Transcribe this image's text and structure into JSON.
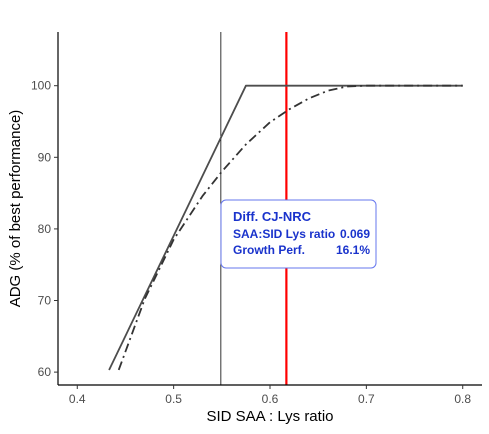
{
  "chart_data": {
    "type": "line",
    "xlabel": "SID SAA : Lys ratio",
    "ylabel": "ADG (% of best performance)",
    "xlim": [
      0.38,
      0.82
    ],
    "ylim": [
      58.2,
      107.5
    ],
    "x_ticks": [
      0.4,
      0.5,
      0.6,
      0.7,
      0.8
    ],
    "x_tick_labels": [
      "0.4",
      "0.5",
      "0.6",
      "0.7",
      "0.8"
    ],
    "y_ticks": [
      60,
      70,
      80,
      90,
      100
    ],
    "y_tick_labels": [
      "60",
      "70",
      "80",
      "90",
      "100"
    ],
    "grid": false,
    "series": [
      {
        "style": "solid",
        "color": "#4d4d4d",
        "x": [
          0.433,
          0.575,
          0.8
        ],
        "y": [
          60.3,
          100,
          100
        ]
      },
      {
        "style": "dashdot",
        "color": "#333333",
        "x": [
          0.443,
          0.47,
          0.5,
          0.53,
          0.55,
          0.575,
          0.6,
          0.62,
          0.64,
          0.66,
          0.68,
          0.7,
          0.8
        ],
        "y": [
          60.3,
          70.2,
          78.5,
          84.6,
          88.0,
          91.8,
          94.9,
          96.7,
          98.2,
          99.3,
          99.9,
          100,
          100
        ]
      }
    ],
    "vlines": [
      {
        "x": 0.549,
        "color": "#000000",
        "width": 0.8
      },
      {
        "x": 0.617,
        "color": "#ff0000",
        "width": 2.2
      }
    ],
    "annotation": {
      "title": "Diff. CJ-NRC",
      "rows": [
        {
          "label": "SAA:SID Lys ratio",
          "value": "0.069"
        },
        {
          "label": "Growth Perf.",
          "value": "16.1%"
        }
      ]
    }
  }
}
